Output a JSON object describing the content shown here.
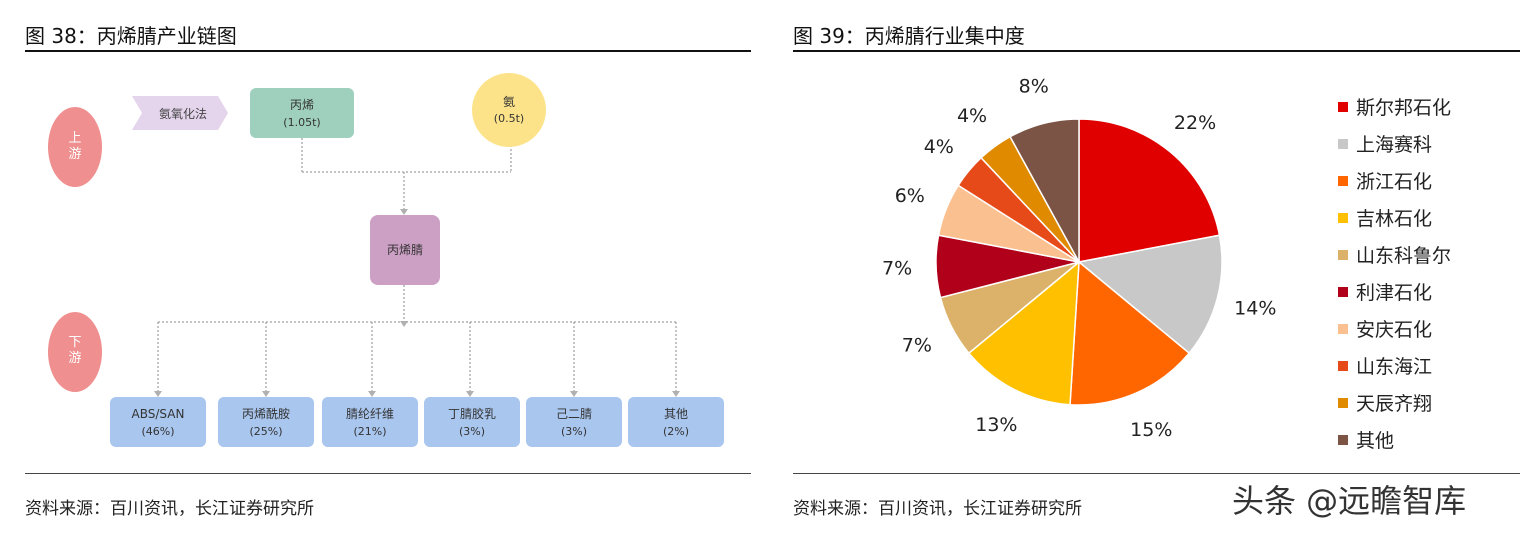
{
  "left": {
    "title": "图  38：丙烯腈产业链图",
    "source": "资料来源：百川资讯，长江证券研究所",
    "upstream_label": "上\n游",
    "downstream_label": "下\n游",
    "process_label": "氨氧化法",
    "inputs": [
      {
        "name": "丙烯",
        "value": "(1.05t)",
        "color": "#9fd0be"
      },
      {
        "name": "氨",
        "value": "(0.5t)",
        "color": "#fce38a"
      }
    ],
    "product": "丙烯腈",
    "downstream": [
      {
        "name": "ABS/SAN",
        "share": "(46%)"
      },
      {
        "name": "丙烯酰胺",
        "share": "(25%)"
      },
      {
        "name": "腈纶纤维",
        "share": "(21%)"
      },
      {
        "name": "丁腈胶乳",
        "share": "(3%)"
      },
      {
        "name": "己二腈",
        "share": "(3%)"
      },
      {
        "name": "其他",
        "share": "(2%)"
      }
    ]
  },
  "right": {
    "title": "图  39：丙烯腈行业集中度",
    "source": "资料来源：百川资讯，长江证券研究所"
  },
  "watermark": "头条 @远瞻智库",
  "chart_data": {
    "type": "pie",
    "title": "图  39：丙烯腈行业集中度",
    "legend_position": "right",
    "slices": [
      {
        "label": "斯尔邦石化",
        "value": 22,
        "text": "22%",
        "color": "#e00000"
      },
      {
        "label": "上海赛科",
        "value": 14,
        "text": "14%",
        "color": "#c8c8c8"
      },
      {
        "label": "浙江石化",
        "value": 15,
        "text": "15%",
        "color": "#ff6600"
      },
      {
        "label": "吉林石化",
        "value": 13,
        "text": "13%",
        "color": "#ffc000"
      },
      {
        "label": "山东科鲁尔",
        "value": 7,
        "text": "7%",
        "color": "#dcb26a"
      },
      {
        "label": "利津石化",
        "value": 7,
        "text": "7%",
        "color": "#b0001a"
      },
      {
        "label": "安庆石化",
        "value": 6,
        "text": "6%",
        "color": "#fac08f"
      },
      {
        "label": "山东海江",
        "value": 4,
        "text": "4%",
        "color": "#e64a19"
      },
      {
        "label": "天辰齐翔",
        "value": 4,
        "text": "4%",
        "color": "#e08a00"
      },
      {
        "label": "其他",
        "value": 8,
        "text": "8%",
        "color": "#7b5446"
      }
    ]
  }
}
